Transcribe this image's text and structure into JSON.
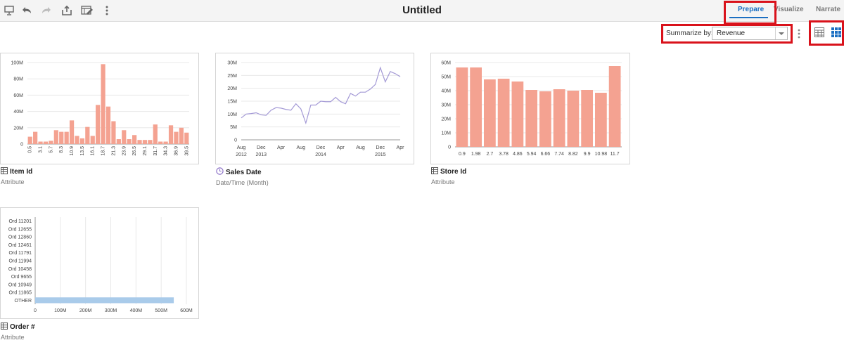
{
  "header": {
    "title": "Untitled"
  },
  "toolbar": {
    "icons": [
      "presentation-icon",
      "undo-icon",
      "redo-icon",
      "export-icon",
      "edit-data-icon",
      "more-options-icon"
    ]
  },
  "nav": {
    "tabs": [
      {
        "label": "Prepare",
        "active": true
      },
      {
        "label": "Visualize"
      },
      {
        "label": "Narrate"
      }
    ]
  },
  "summarize": {
    "label": "Summarize by:",
    "value": "Revenue"
  },
  "colors": {
    "bar": "#f4a291",
    "line": "#a49ad6",
    "hbar": "#a9cbea",
    "accent": "#1b6fc2",
    "highlight": "#d9121b"
  },
  "cards": [
    {
      "title": "Item Id",
      "subtitle": "Attribute",
      "icon": "attribute-icon"
    },
    {
      "title": "Sales Date",
      "subtitle": "Date/Time (Month)",
      "icon": "clock-icon"
    },
    {
      "title": "Store Id",
      "subtitle": "Attribute",
      "icon": "attribute-icon"
    },
    {
      "title": "Order #",
      "subtitle": "Attribute",
      "icon": "attribute-icon"
    }
  ],
  "chart_data": [
    {
      "type": "bar",
      "ylim": [
        0,
        100
      ],
      "yticks": [
        "0",
        "20M",
        "40M",
        "60M",
        "80M",
        "100M"
      ],
      "values": [
        9,
        15,
        3,
        3,
        4,
        17,
        15,
        15,
        29,
        10,
        7,
        21,
        10,
        48,
        98,
        46,
        28,
        6,
        17,
        6,
        11,
        5,
        5,
        5,
        24,
        3,
        3,
        23,
        15,
        20,
        14
      ],
      "x_labels": [
        "0.5",
        "3.1",
        "5.7",
        "8.3",
        "10.9",
        "13.5",
        "16.1",
        "18.7",
        "21.3",
        "23.9",
        "26.5",
        "29.1",
        "31.7",
        "34.3",
        "36.9",
        "39.5"
      ]
    },
    {
      "type": "line",
      "ylim": [
        0,
        30
      ],
      "yticks": [
        "0",
        "5M",
        "10M",
        "15M",
        "20M",
        "25M",
        "30M"
      ],
      "values": [
        8.5,
        10,
        10.2,
        10.5,
        9.7,
        9.5,
        11.5,
        12.5,
        12.3,
        11.8,
        11.5,
        14,
        12,
        6.5,
        13.5,
        13.5,
        15,
        14.8,
        14.8,
        16.5,
        14.8,
        14,
        18,
        17,
        18.5,
        18.5,
        19.7,
        21.5,
        28,
        22.5,
        26.5,
        25.7,
        24.5
      ],
      "month_labels": [
        "Aug",
        "Dec",
        "Apr",
        "Aug",
        "Dec",
        "Apr",
        "Aug",
        "Dec",
        "Apr"
      ],
      "year_labels": [
        {
          "text": "2012",
          "at": 0
        },
        {
          "text": "2013",
          "at": 1
        },
        {
          "text": "2014",
          "at": 4
        },
        {
          "text": "2015",
          "at": 7
        }
      ]
    },
    {
      "type": "bar",
      "ylim": [
        0,
        60
      ],
      "yticks": [
        "0",
        "10M",
        "20M",
        "30M",
        "40M",
        "50M",
        "60M"
      ],
      "categories": [
        "0.9",
        "1.98",
        "2.7",
        "3.78",
        "4.86",
        "5.94",
        "6.66",
        "7.74",
        "8.82",
        "9.9",
        "10.98",
        "11.7"
      ],
      "values": [
        56.5,
        56.5,
        48,
        48.5,
        46.5,
        40.5,
        39.5,
        41,
        40,
        40.5,
        38.5,
        57.5
      ]
    },
    {
      "type": "bar",
      "orientation": "horizontal",
      "xlim": [
        0,
        600
      ],
      "xticks": [
        "0",
        "100M",
        "200M",
        "300M",
        "400M",
        "500M",
        "600M"
      ],
      "categories": [
        "Ord 11201",
        "Ord 12655",
        "Ord 12860",
        "Ord 12461",
        "Ord 11791",
        "Ord 11994",
        "Ord 10458",
        "Ord 9655",
        "Ord 10949",
        "Ord 11865",
        "OTHER"
      ],
      "values": [
        0,
        0,
        0,
        0,
        0,
        0,
        0,
        0,
        0,
        0,
        550
      ]
    }
  ]
}
